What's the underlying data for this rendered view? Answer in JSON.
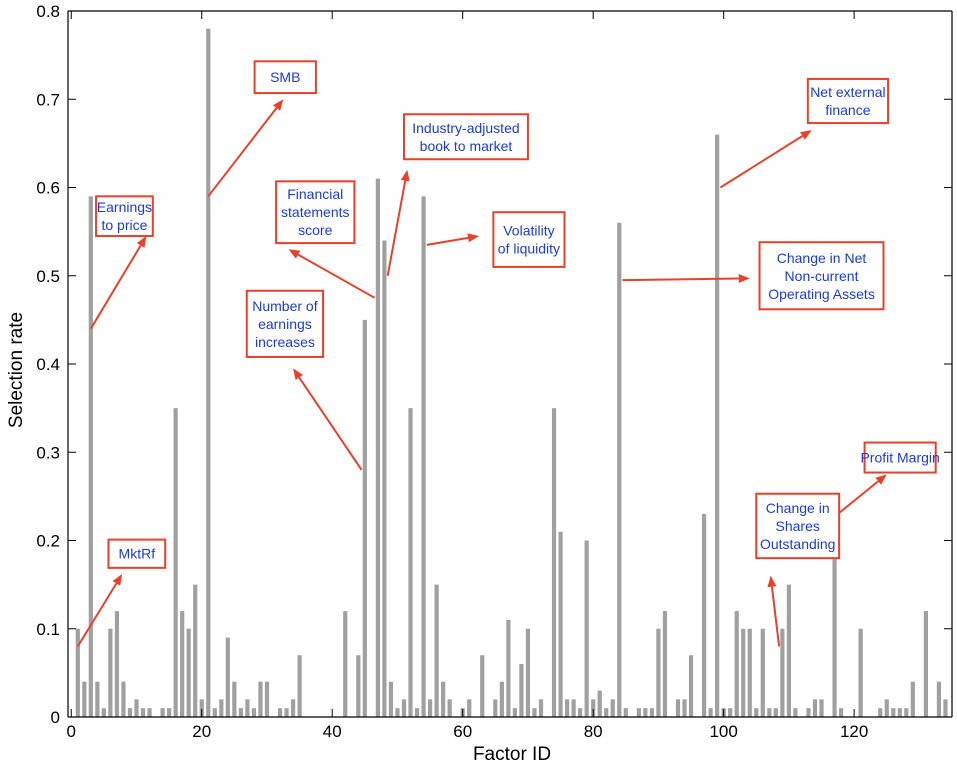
{
  "chart_data": {
    "type": "bar",
    "xlabel": "Factor ID",
    "ylabel": "Selection rate",
    "xlim": [
      -0.5,
      135
    ],
    "ylim": [
      0,
      0.8
    ],
    "xticks": [
      0,
      20,
      40,
      60,
      80,
      100,
      120
    ],
    "yticks": [
      0,
      0.1,
      0.2,
      0.3,
      0.4,
      0.5,
      0.6,
      0.7,
      0.8
    ],
    "ytick_labels": [
      "0",
      "0.1",
      "0.2",
      "0.3",
      "0.4",
      "0.5",
      "0.6",
      "0.7",
      "0.8"
    ],
    "grid": false,
    "bar_color": "#a0a0a0",
    "annotation_color": "#e8402a",
    "label_color": "#1a3bd6",
    "x": [
      1,
      2,
      3,
      4,
      5,
      6,
      7,
      8,
      9,
      10,
      11,
      12,
      13,
      14,
      15,
      16,
      17,
      18,
      19,
      20,
      21,
      22,
      23,
      24,
      25,
      26,
      27,
      28,
      29,
      30,
      31,
      32,
      33,
      34,
      35,
      36,
      37,
      38,
      39,
      40,
      41,
      42,
      43,
      44,
      45,
      46,
      47,
      48,
      49,
      50,
      51,
      52,
      53,
      54,
      55,
      56,
      57,
      58,
      59,
      60,
      61,
      62,
      63,
      64,
      65,
      66,
      67,
      68,
      69,
      70,
      71,
      72,
      73,
      74,
      75,
      76,
      77,
      78,
      79,
      80,
      81,
      82,
      83,
      84,
      85,
      86,
      87,
      88,
      89,
      90,
      91,
      92,
      93,
      94,
      95,
      96,
      97,
      98,
      99,
      100,
      101,
      102,
      103,
      104,
      105,
      106,
      107,
      108,
      109,
      110,
      111,
      112,
      113,
      114,
      115,
      116,
      117,
      118,
      119,
      120,
      121,
      122,
      123,
      124,
      125,
      126,
      127,
      128,
      129,
      130,
      131,
      132,
      133,
      134
    ],
    "values": [
      0.1,
      0.04,
      0.59,
      0.04,
      0.01,
      0.1,
      0.12,
      0.04,
      0.01,
      0.02,
      0.01,
      0.01,
      0,
      0.01,
      0.01,
      0.35,
      0.12,
      0.1,
      0.15,
      0.02,
      0.78,
      0.01,
      0.02,
      0.09,
      0.04,
      0.01,
      0.02,
      0.01,
      0.04,
      0.04,
      0,
      0.01,
      0.01,
      0.02,
      0.07,
      0,
      0,
      0,
      0,
      0,
      0,
      0.12,
      0,
      0.07,
      0.45,
      0,
      0.61,
      0.54,
      0.04,
      0.01,
      0.02,
      0.35,
      0.01,
      0.59,
      0.02,
      0.15,
      0.04,
      0.02,
      0,
      0.01,
      0.02,
      0,
      0.07,
      0,
      0.02,
      0.04,
      0.11,
      0.01,
      0.06,
      0.1,
      0.01,
      0.02,
      0,
      0.35,
      0.21,
      0.02,
      0.02,
      0.01,
      0.2,
      0.02,
      0.03,
      0.01,
      0.02,
      0.56,
      0.01,
      0,
      0.01,
      0.01,
      0.01,
      0.1,
      0.12,
      0,
      0.02,
      0.02,
      0.07,
      0,
      0.23,
      0.01,
      0.66,
      0.01,
      0.01,
      0.12,
      0.1,
      0.1,
      0.01,
      0.1,
      0.01,
      0.01,
      0.1,
      0.15,
      0.01,
      0,
      0.01,
      0.02,
      0.02,
      0,
      0.25,
      0.01,
      0,
      0,
      0.1,
      0,
      0,
      0.01,
      0.02,
      0.01,
      0.01,
      0.01,
      0.04,
      0,
      0.12,
      0,
      0.04,
      0.02
    ],
    "annotations": [
      {
        "name": "earnings-to-price",
        "lines": [
          "Earnings",
          "to price"
        ],
        "bar": 3,
        "from": [
          3,
          0.44
        ],
        "to": [
          11.5,
          0.545
        ]
      },
      {
        "name": "mktrf",
        "lines": [
          "MktRf"
        ],
        "bar": 1,
        "from": [
          1,
          0.08
        ],
        "to": [
          7.8,
          0.162
        ]
      },
      {
        "name": "smb",
        "lines": [
          "SMB"
        ],
        "bar": 21,
        "from": [
          21,
          0.59
        ],
        "to": [
          32.5,
          0.7
        ]
      },
      {
        "name": "financial-statements-score",
        "lines": [
          "Financial",
          "statements",
          "score"
        ],
        "bar": 47,
        "from": [
          46.5,
          0.475
        ],
        "to": [
          33.3,
          0.53
        ]
      },
      {
        "name": "number-of-earnings-increases",
        "lines": [
          "Number of",
          "earnings",
          "increases"
        ],
        "bar": 45,
        "from": [
          44.5,
          0.28
        ],
        "to": [
          34,
          0.395
        ]
      },
      {
        "name": "industry-adjusted-book-to-market",
        "lines": [
          "Industry-adjusted",
          "book to market"
        ],
        "bar": 48,
        "from": [
          48.5,
          0.5
        ],
        "to": [
          51.5,
          0.62
        ]
      },
      {
        "name": "volatility-of-liquidity",
        "lines": [
          "Volatility",
          "of liquidity"
        ],
        "bar": 54,
        "from": [
          54.5,
          0.535
        ],
        "to": [
          62.5,
          0.545
        ]
      },
      {
        "name": "change-in-net-noncurrent-operating-assets",
        "lines": [
          "Change in Net",
          "Non-current",
          "Operating Assets"
        ],
        "bar": 84,
        "from": [
          84.5,
          0.495
        ],
        "to": [
          104,
          0.497
        ]
      },
      {
        "name": "net-external-finance",
        "lines": [
          "Net external",
          "finance"
        ],
        "bar": 99,
        "from": [
          99.5,
          0.6
        ],
        "to": [
          113.5,
          0.665
        ]
      },
      {
        "name": "profit-margin",
        "lines": [
          "Profit Margin"
        ],
        "bar": 117,
        "from": [
          117.5,
          0.23
        ],
        "to": [
          125,
          0.275
        ]
      },
      {
        "name": "change-in-shares-outstanding",
        "lines": [
          "Change in",
          "Shares",
          "Outstanding"
        ],
        "bar": 109,
        "from": [
          108.5,
          0.08
        ],
        "to": [
          107.2,
          0.16
        ]
      }
    ],
    "annotation_boxes": {
      "earnings-to-price": [
        3.8,
        0.59,
        12.5,
        0.545
      ],
      "mktrf": [
        5.7,
        0.201,
        14.4,
        0.169
      ],
      "smb": [
        28.1,
        0.743,
        37.5,
        0.707
      ],
      "financial-statements-score": [
        31.4,
        0.607,
        43.4,
        0.537
      ],
      "number-of-earnings-increases": [
        26.9,
        0.483,
        38.6,
        0.408
      ],
      "industry-adjusted-book-to-market": [
        51.0,
        0.683,
        70.0,
        0.632
      ],
      "volatility-of-liquidity": [
        64.7,
        0.572,
        75.6,
        0.51
      ],
      "change-in-net-noncurrent-operating-assets": [
        105.5,
        0.538,
        124.5,
        0.462
      ],
      "net-external-finance": [
        112.9,
        0.723,
        125.2,
        0.673
      ],
      "profit-margin": [
        121.6,
        0.311,
        132.5,
        0.277
      ],
      "change-in-shares-outstanding": [
        105.0,
        0.253,
        117.7,
        0.18
      ]
    }
  }
}
